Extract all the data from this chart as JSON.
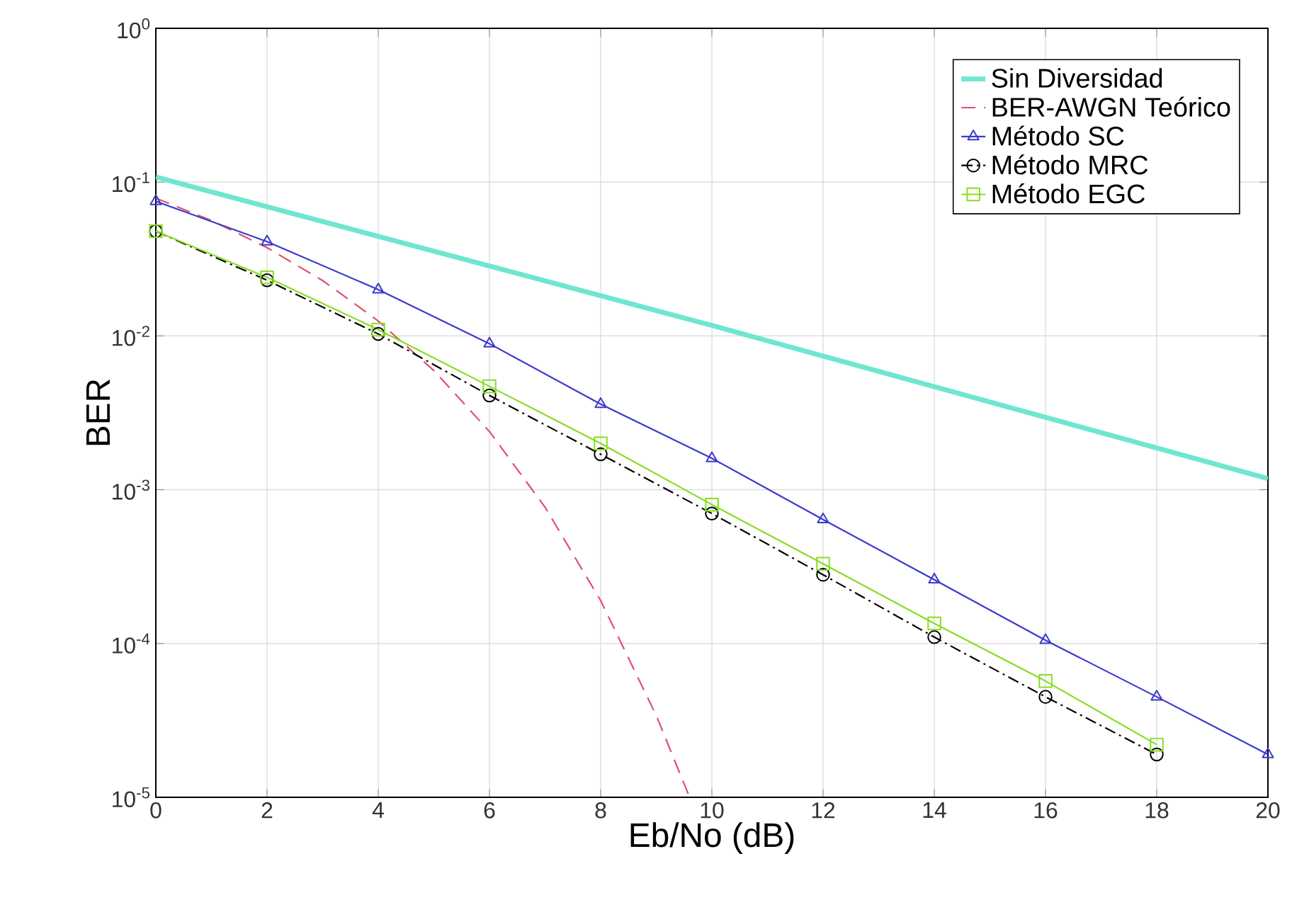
{
  "chart_data": {
    "type": "line",
    "xlabel": "Eb/No (dB)",
    "ylabel": "BER",
    "log": "y",
    "grid": true,
    "legend": "top right",
    "xlim": [
      0,
      20
    ],
    "xticks": [
      0,
      2,
      4,
      6,
      8,
      10,
      12,
      14,
      16,
      18,
      20
    ],
    "ylim": [
      1e-05,
      1
    ],
    "yticks": [
      {
        "value": 1e-05,
        "label": "10$^{-5}$"
      },
      {
        "value": 0.0001,
        "label": "10$^{-4}$"
      },
      {
        "value": 0.001,
        "label": "10$^{-3}$"
      },
      {
        "value": 0.01,
        "label": "10$^{-2}$"
      },
      {
        "value": 0.1,
        "label": "10$^{-1}$"
      },
      {
        "value": 1,
        "label": "10$^{0}$"
      }
    ],
    "series": [
      {
        "name": "Sin Diversidad",
        "color": "#70e6d2",
        "line_style": "solid",
        "marker": "none",
        "x": [
          0,
          10,
          20
        ],
        "values": [
          0.108,
          0.0117,
          0.00118
        ]
      },
      {
        "name": "BER-AWGN Teórico",
        "color": "#e0506a",
        "line_style": "dashed",
        "marker": "none",
        "x": [
          0,
          1,
          2,
          3,
          4,
          5,
          6,
          7,
          8,
          9,
          9.6
        ],
        "values": [
          0.0786,
          0.0563,
          0.0375,
          0.0229,
          0.0125,
          0.00595,
          0.00239,
          0.00077,
          0.00019,
          3.4e-05,
          1e-05
        ]
      },
      {
        "name": "Método SC",
        "color": "#3a3acc",
        "line_style": "solid",
        "marker": "triangle",
        "x": [
          0,
          2,
          4,
          6,
          8,
          10,
          12,
          14,
          16,
          18,
          20
        ],
        "values": [
          0.075,
          0.041,
          0.02,
          0.0089,
          0.0036,
          0.0016,
          0.00064,
          0.00026,
          0.000105,
          4.5e-05,
          1.9e-05
        ]
      },
      {
        "name": "Método MRC",
        "color": "#000000",
        "line_style": "dashdot",
        "marker": "circle",
        "x": [
          0,
          2,
          4,
          6,
          8,
          10,
          12,
          14,
          16,
          18
        ],
        "values": [
          0.048,
          0.023,
          0.0103,
          0.0041,
          0.0017,
          0.0007,
          0.00028,
          0.00011,
          4.5e-05,
          1.9e-05
        ]
      },
      {
        "name": "Método EGC",
        "color": "#88dd22",
        "line_style": "solid",
        "marker": "square",
        "x": [
          0,
          2,
          4,
          6,
          8,
          10,
          12,
          14,
          16,
          18
        ],
        "values": [
          0.048,
          0.024,
          0.011,
          0.0047,
          0.002,
          0.0008,
          0.00033,
          0.000135,
          5.7e-05,
          2.2e-05
        ]
      }
    ]
  }
}
